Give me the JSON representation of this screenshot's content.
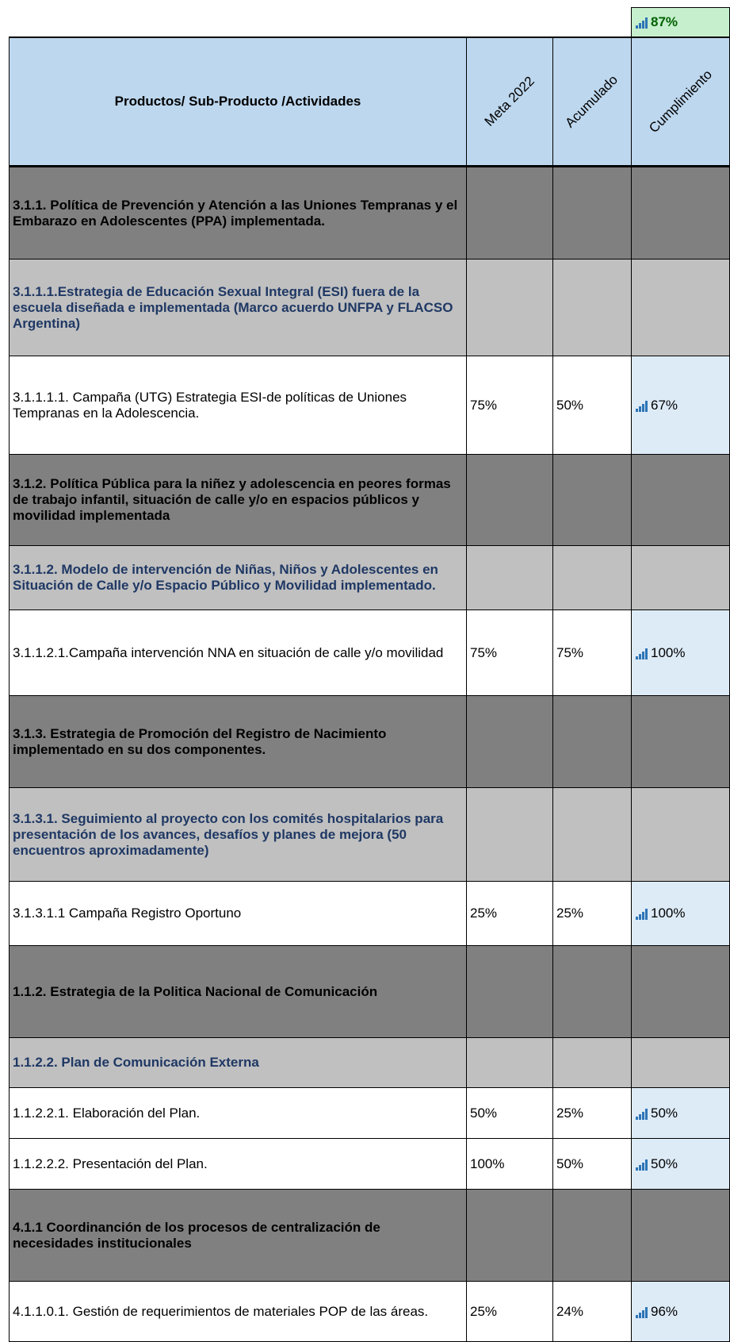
{
  "summary": {
    "cumplimiento": "87%"
  },
  "table": {
    "header": [
      "Productos/ Sub-Producto /Actividades",
      "Meta 2022",
      "Acumulado",
      "Cumplimiento"
    ],
    "rows": [
      [
        "3.1.1. Política de Prevención y Atención  a las Uniones Tempranas y el Embarazo en Adolescentes (PPA) implementada."
      ],
      [
        "3.1.1.1.Estrategia de Educación Sexual Integral (ESI) fuera de la escuela diseñada e implementada (Marco acuerdo UNFPA y FLACSO Argentina)"
      ],
      [
        "3.1.1.1.1. Campaña (UTG) Estrategia ESI-de políticas de Uniones Tempranas en la Adolescencia.",
        "75%",
        "50%",
        "67%"
      ],
      [
        "3.1.2. Política Pública para la niñez y adolescencia en peores formas de trabajo infantil, situación de calle y/o en espacios públicos y movilidad implementada"
      ],
      [
        "3.1.1.2. Modelo de intervención de Niñas, Niños y Adolescentes en Situación de Calle y/o Espacio Público y Movilidad implementado."
      ],
      [
        "3.1.1.2.1.Campaña intervención NNA en situación de calle y/o movilidad",
        "75%",
        "75%",
        "100%"
      ],
      [
        "3.1.3.  Estrategia de Promoción del Registro de Nacimiento implementado en su dos componentes."
      ],
      [
        "3.1.3.1. Seguimiento al proyecto con los comités hospitalarios para  presentación de los avances, desafíos  y planes de mejora  (50 encuentros aproximadamente)"
      ],
      [
        "3.1.3.1.1 Campaña Registro Oportuno",
        "25%",
        "25%",
        "100%"
      ],
      [
        "1.1.2. Estrategia de la Politica Nacional de Comunicación"
      ],
      [
        "1.1.2.2. Plan de Comunicación Externa"
      ],
      [
        "1.1.2.2.1.  Elaboración del Plan.",
        "50%",
        "25%",
        "50%"
      ],
      [
        "1.1.2.2.2. Presentación del Plan.",
        "100%",
        "50%",
        "50%"
      ],
      [
        "4.1.1 Coordinanción de los procesos de centralización de necesidades institucionales"
      ],
      [
        "4.1.1.0.1. Gestión de requerimientos de materiales POP de las áreas.",
        "25%",
        "24%",
        "96%"
      ]
    ]
  }
}
